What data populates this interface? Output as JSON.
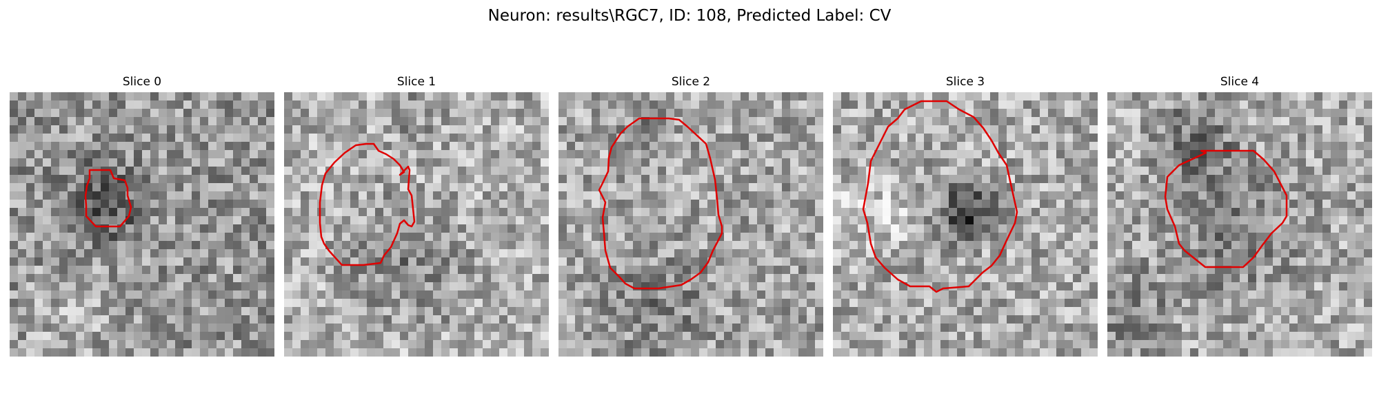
{
  "figure": {
    "title": "Neuron: results\\RGC7, ID: 108, Predicted Label: CV"
  },
  "panels": [
    {
      "title": "Slice 0"
    },
    {
      "title": "Slice 1"
    },
    {
      "title": "Slice 2"
    },
    {
      "title": "Slice 3"
    },
    {
      "title": "Slice 4"
    }
  ],
  "colors": {
    "contour": "#e00000",
    "background": "#ffffff"
  }
}
